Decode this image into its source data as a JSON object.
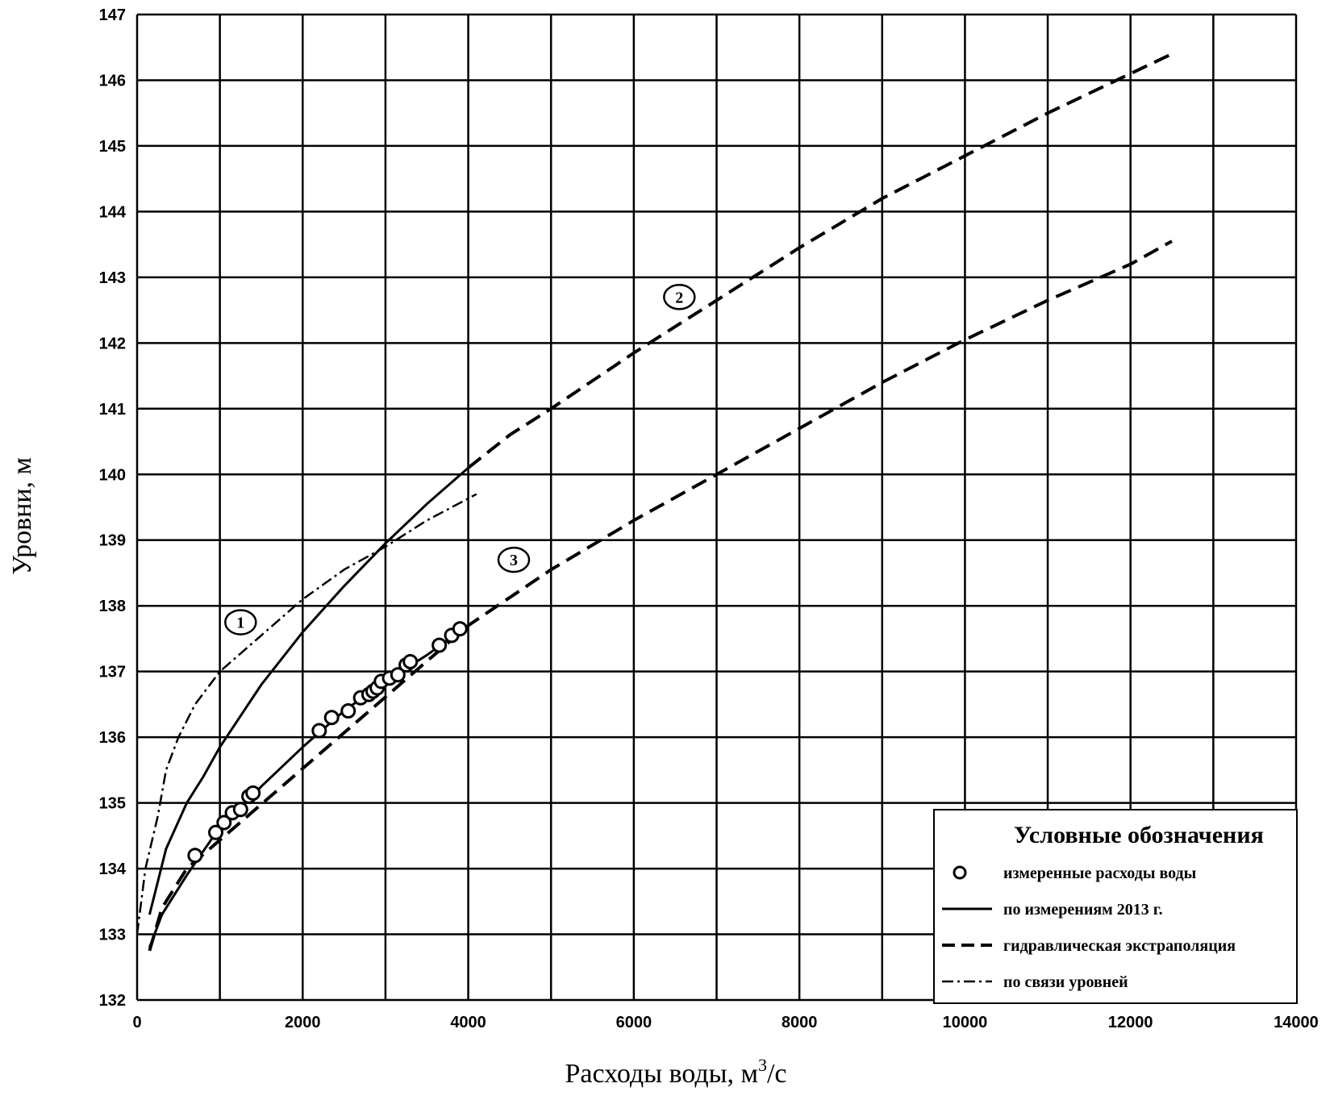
{
  "chart_data": {
    "type": "line",
    "xlabel": "Расходы воды, м",
    "xlabel_sup": "3",
    "xlabel_unit": "/с",
    "ylabel": "Уровни, м",
    "xlim": [
      0,
      14000
    ],
    "ylim": [
      132,
      147
    ],
    "x_ticks": [
      0,
      2000,
      4000,
      6000,
      8000,
      10000,
      12000,
      14000
    ],
    "y_ticks": [
      132,
      133,
      134,
      135,
      136,
      137,
      138,
      139,
      140,
      141,
      142,
      143,
      144,
      145,
      146,
      147
    ],
    "grid": true,
    "grid_x_step": 1000,
    "legend": {
      "title": "Условные обозначения",
      "placement": "bottom-right",
      "entries": [
        {
          "label": "измеренные расходы воды",
          "style": "marker"
        },
        {
          "label": "по измерениям 2013 г.",
          "style": "solid"
        },
        {
          "label": "гидравлическая экстраполяция",
          "style": "dashed"
        },
        {
          "label": "по связи уровней",
          "style": "dashdot"
        }
      ]
    },
    "curve_labels": [
      {
        "text": "1",
        "x": 1250,
        "y": 137.75
      },
      {
        "text": "2",
        "x": 6550,
        "y": 142.7
      },
      {
        "text": "3",
        "x": 4550,
        "y": 138.7
      }
    ],
    "series": [
      {
        "style": "marker",
        "points": [
          [
            700,
            134.2
          ],
          [
            950,
            134.55
          ],
          [
            1050,
            134.7
          ],
          [
            1150,
            134.85
          ],
          [
            1250,
            134.9
          ],
          [
            1350,
            135.1
          ],
          [
            1400,
            135.15
          ],
          [
            2200,
            136.1
          ],
          [
            2350,
            136.3
          ],
          [
            2550,
            136.4
          ],
          [
            2700,
            136.6
          ],
          [
            2800,
            136.65
          ],
          [
            2850,
            136.7
          ],
          [
            2900,
            136.75
          ],
          [
            2950,
            136.85
          ],
          [
            3050,
            136.9
          ],
          [
            3150,
            136.95
          ],
          [
            3250,
            137.1
          ],
          [
            3300,
            137.15
          ],
          [
            3650,
            137.4
          ],
          [
            3800,
            137.55
          ],
          [
            3900,
            137.65
          ]
        ]
      },
      {
        "style": "solid",
        "points": [
          [
            150,
            133.3
          ],
          [
            350,
            134.3
          ],
          [
            600,
            135.0
          ],
          [
            800,
            135.4
          ],
          [
            1000,
            135.85
          ],
          [
            1500,
            136.8
          ],
          [
            2000,
            137.6
          ],
          [
            2500,
            138.3
          ],
          [
            3000,
            138.95
          ],
          [
            3500,
            139.55
          ],
          [
            4000,
            140.1
          ]
        ]
      },
      {
        "style": "dashed",
        "points": [
          [
            4000,
            140.1
          ],
          [
            4500,
            140.6
          ],
          [
            5000,
            141.0
          ],
          [
            6000,
            141.85
          ],
          [
            7000,
            142.65
          ],
          [
            8000,
            143.45
          ],
          [
            9000,
            144.2
          ],
          [
            10000,
            144.85
          ],
          [
            11000,
            145.5
          ],
          [
            12000,
            146.1
          ],
          [
            12500,
            146.4
          ]
        ]
      },
      {
        "style": "solid",
        "points": [
          [
            150,
            132.8
          ],
          [
            300,
            133.3
          ],
          [
            600,
            133.9
          ],
          [
            900,
            134.45
          ],
          [
            1200,
            134.85
          ],
          [
            1500,
            135.25
          ],
          [
            2000,
            135.85
          ],
          [
            2500,
            136.4
          ],
          [
            3000,
            136.85
          ],
          [
            3500,
            137.25
          ],
          [
            4000,
            137.7
          ]
        ]
      },
      {
        "style": "dashed",
        "points": [
          [
            150,
            132.75
          ],
          [
            300,
            133.4
          ],
          [
            600,
            134.0
          ],
          [
            4000,
            137.7
          ],
          [
            5000,
            138.55
          ],
          [
            6000,
            139.3
          ],
          [
            7000,
            140.0
          ],
          [
            8000,
            140.7
          ],
          [
            9000,
            141.4
          ],
          [
            10000,
            142.05
          ],
          [
            11000,
            142.65
          ],
          [
            12000,
            143.2
          ],
          [
            12500,
            143.55
          ]
        ]
      },
      {
        "style": "dashdot",
        "points": [
          [
            0,
            133.0
          ],
          [
            100,
            134.0
          ],
          [
            250,
            134.8
          ],
          [
            350,
            135.5
          ],
          [
            500,
            136.0
          ],
          [
            700,
            136.5
          ],
          [
            1000,
            137.0
          ],
          [
            1500,
            137.55
          ],
          [
            2000,
            138.1
          ],
          [
            2500,
            138.55
          ],
          [
            3000,
            138.9
          ],
          [
            3500,
            139.3
          ],
          [
            4100,
            139.7
          ]
        ]
      }
    ]
  }
}
